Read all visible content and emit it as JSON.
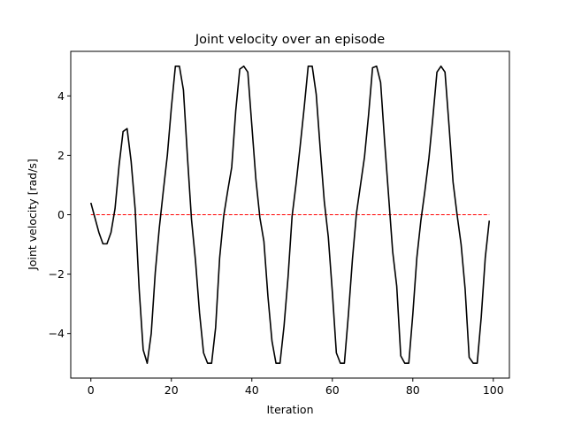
{
  "chart_data": {
    "type": "line",
    "title": "Joint velocity over an episode",
    "xlabel": "Iteration",
    "ylabel": "Joint velocity [rad/s]",
    "xlim": [
      -5,
      104
    ],
    "ylim": [
      -5.5,
      5.5
    ],
    "xticks": [
      0,
      20,
      40,
      60,
      80,
      100
    ],
    "yticks": [
      -4,
      -2,
      0,
      2,
      4
    ],
    "xtick_labels": [
      "0",
      "20",
      "40",
      "60",
      "80",
      "100"
    ],
    "ytick_labels": [
      "−4",
      "−2",
      "0",
      "2",
      "4"
    ],
    "grid": false,
    "series": [
      {
        "color": "#000000",
        "style": "solid",
        "x": [
          0,
          1,
          2,
          3,
          4,
          5,
          6,
          7,
          8,
          9,
          10,
          11,
          12,
          13,
          14,
          15,
          16,
          17,
          18,
          19,
          20,
          21,
          22,
          23,
          24,
          25,
          26,
          27,
          28,
          29,
          30,
          31,
          32,
          33,
          34,
          35,
          36,
          37,
          38,
          39,
          40,
          41,
          42,
          43,
          44,
          45,
          46,
          47,
          48,
          49,
          50,
          51,
          52,
          53,
          54,
          55,
          56,
          57,
          58,
          59,
          60,
          61,
          62,
          63,
          64,
          65,
          66,
          67,
          68,
          69,
          70,
          71,
          72,
          73,
          74,
          75,
          76,
          77,
          78,
          79,
          80,
          81,
          82,
          83,
          84,
          85,
          86,
          87,
          88,
          89,
          90,
          91,
          92,
          93,
          94,
          95,
          96,
          97,
          98,
          99
        ],
        "y": [
          0.4,
          -0.1,
          -0.6,
          -0.98,
          -0.98,
          -0.6,
          0.2,
          1.65,
          2.8,
          2.9,
          1.8,
          0.2,
          -2.5,
          -4.55,
          -5.0,
          -4.0,
          -1.95,
          -0.45,
          0.8,
          2.0,
          3.6,
          5.0,
          5.0,
          4.2,
          1.95,
          -0.15,
          -1.55,
          -3.3,
          -4.65,
          -5.0,
          -5.0,
          -3.8,
          -1.45,
          -0.05,
          0.8,
          1.6,
          3.5,
          4.9,
          5.0,
          4.8,
          3.0,
          1.2,
          -0.1,
          -0.9,
          -2.75,
          -4.25,
          -5.0,
          -5.0,
          -3.75,
          -2.1,
          -0.05,
          1.05,
          2.3,
          3.6,
          5.0,
          5.0,
          4.05,
          2.2,
          0.45,
          -0.75,
          -2.6,
          -4.65,
          -5.0,
          -5.0,
          -3.35,
          -1.5,
          0.05,
          1.0,
          1.95,
          3.35,
          4.95,
          5.0,
          4.45,
          2.45,
          0.6,
          -1.25,
          -2.4,
          -4.75,
          -5.0,
          -5.0,
          -3.35,
          -1.45,
          -0.2,
          0.8,
          1.9,
          3.3,
          4.8,
          5.0,
          4.8,
          3.0,
          1.1,
          0.0,
          -1.0,
          -2.5,
          -4.8,
          -5.0,
          -5.0,
          -3.45,
          -1.45,
          -0.2
        ]
      },
      {
        "color": "#ff0000",
        "style": "dashed",
        "x": [
          0,
          99
        ],
        "y": [
          0,
          0
        ]
      }
    ]
  }
}
